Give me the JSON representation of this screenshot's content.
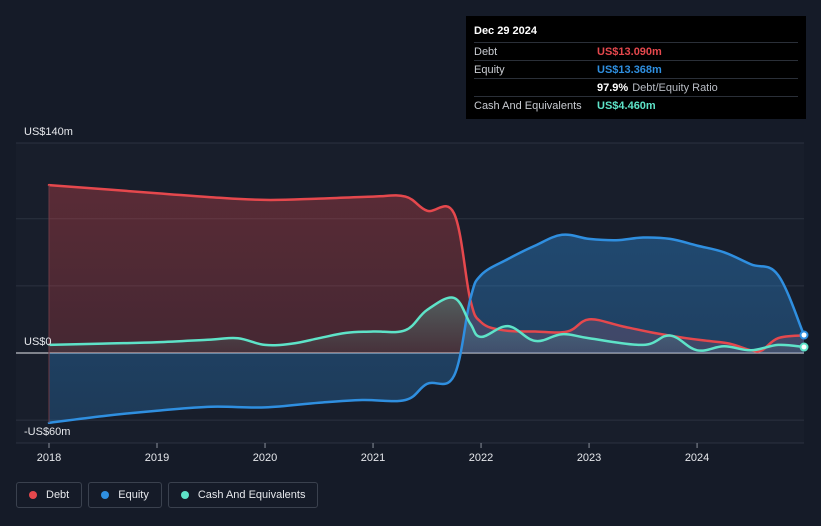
{
  "colors": {
    "debt": "#e5484d",
    "equity": "#2f8fe0",
    "cash": "#5ee3c8",
    "background": "#151b28",
    "plot_band": "#181e2b"
  },
  "tooltip": {
    "date": "Dec 29 2024",
    "rows": [
      {
        "label": "Debt",
        "value": "US$13.090m",
        "color": "#e5484d",
        "extra": ""
      },
      {
        "label": "Equity",
        "value": "US$13.368m",
        "color": "#2f8fe0",
        "extra": ""
      },
      {
        "label": "",
        "value": "97.9%",
        "color": "#ffffff",
        "extra": "Debt/Equity Ratio"
      },
      {
        "label": "Cash And Equivalents",
        "value": "US$4.460m",
        "color": "#5ee3c8",
        "extra": ""
      }
    ]
  },
  "legend": [
    {
      "label": "Debt",
      "color": "#e5484d"
    },
    {
      "label": "Equity",
      "color": "#2f8fe0"
    },
    {
      "label": "Cash And Equivalents",
      "color": "#5ee3c8"
    }
  ],
  "chart_data": {
    "type": "area",
    "y_axis_labels": [
      {
        "value": 140,
        "text": "US$140m"
      },
      {
        "value": 0,
        "text": "US$0"
      },
      {
        "value": -60,
        "text": "-US$60m"
      }
    ],
    "ylim": [
      -60,
      140
    ],
    "xlim": [
      2018.0,
      2024.99
    ],
    "x_ticks": [
      {
        "value": 2018,
        "text": "2018"
      },
      {
        "value": 2019,
        "text": "2019"
      },
      {
        "value": 2020,
        "text": "2020"
      },
      {
        "value": 2021,
        "text": "2021"
      },
      {
        "value": 2022,
        "text": "2022"
      },
      {
        "value": 2023,
        "text": "2023"
      },
      {
        "value": 2024,
        "text": "2024"
      }
    ],
    "grid": true,
    "series": [
      {
        "name": "Debt",
        "color": "#e5484d",
        "points": [
          [
            2018.0,
            125
          ],
          [
            2019.0,
            119
          ],
          [
            2019.5,
            116
          ],
          [
            2020.0,
            114
          ],
          [
            2020.5,
            115
          ],
          [
            2021.0,
            116.5
          ],
          [
            2021.3,
            116.5
          ],
          [
            2021.5,
            106
          ],
          [
            2021.75,
            104
          ],
          [
            2021.9,
            40
          ],
          [
            2022.0,
            23
          ],
          [
            2022.2,
            17
          ],
          [
            2022.5,
            16
          ],
          [
            2022.8,
            16
          ],
          [
            2023.0,
            25
          ],
          [
            2023.3,
            20
          ],
          [
            2023.6,
            15
          ],
          [
            2023.9,
            11
          ],
          [
            2024.1,
            9
          ],
          [
            2024.3,
            7
          ],
          [
            2024.5,
            2
          ],
          [
            2024.6,
            2
          ],
          [
            2024.75,
            11
          ],
          [
            2024.99,
            13.09
          ]
        ]
      },
      {
        "name": "Equity",
        "color": "#2f8fe0",
        "points": [
          [
            2018.0,
            -52
          ],
          [
            2018.5,
            -47
          ],
          [
            2019.0,
            -43
          ],
          [
            2019.5,
            -40
          ],
          [
            2020.0,
            -40.5
          ],
          [
            2020.5,
            -37
          ],
          [
            2020.9,
            -35
          ],
          [
            2021.3,
            -35
          ],
          [
            2021.5,
            -23
          ],
          [
            2021.75,
            -17
          ],
          [
            2021.9,
            40
          ],
          [
            2022.0,
            58
          ],
          [
            2022.25,
            70
          ],
          [
            2022.5,
            80
          ],
          [
            2022.75,
            88
          ],
          [
            2023.0,
            85
          ],
          [
            2023.25,
            84
          ],
          [
            2023.5,
            86
          ],
          [
            2023.75,
            85
          ],
          [
            2024.0,
            80
          ],
          [
            2024.25,
            75
          ],
          [
            2024.5,
            66
          ],
          [
            2024.75,
            58
          ],
          [
            2024.99,
            13.37
          ]
        ]
      },
      {
        "name": "Cash And Equivalents",
        "color": "#5ee3c8",
        "points": [
          [
            2018.0,
            6
          ],
          [
            2018.5,
            7
          ],
          [
            2019.0,
            8
          ],
          [
            2019.5,
            10
          ],
          [
            2019.75,
            11
          ],
          [
            2020.0,
            6
          ],
          [
            2020.25,
            7
          ],
          [
            2020.5,
            11
          ],
          [
            2020.75,
            15
          ],
          [
            2021.0,
            16
          ],
          [
            2021.3,
            17
          ],
          [
            2021.5,
            32
          ],
          [
            2021.75,
            41
          ],
          [
            2021.9,
            22
          ],
          [
            2022.0,
            12
          ],
          [
            2022.25,
            20
          ],
          [
            2022.5,
            9
          ],
          [
            2022.75,
            14
          ],
          [
            2023.0,
            11
          ],
          [
            2023.5,
            6
          ],
          [
            2023.75,
            13
          ],
          [
            2024.0,
            2
          ],
          [
            2024.25,
            5
          ],
          [
            2024.5,
            2
          ],
          [
            2024.75,
            6
          ],
          [
            2024.99,
            4.46
          ]
        ]
      }
    ]
  }
}
